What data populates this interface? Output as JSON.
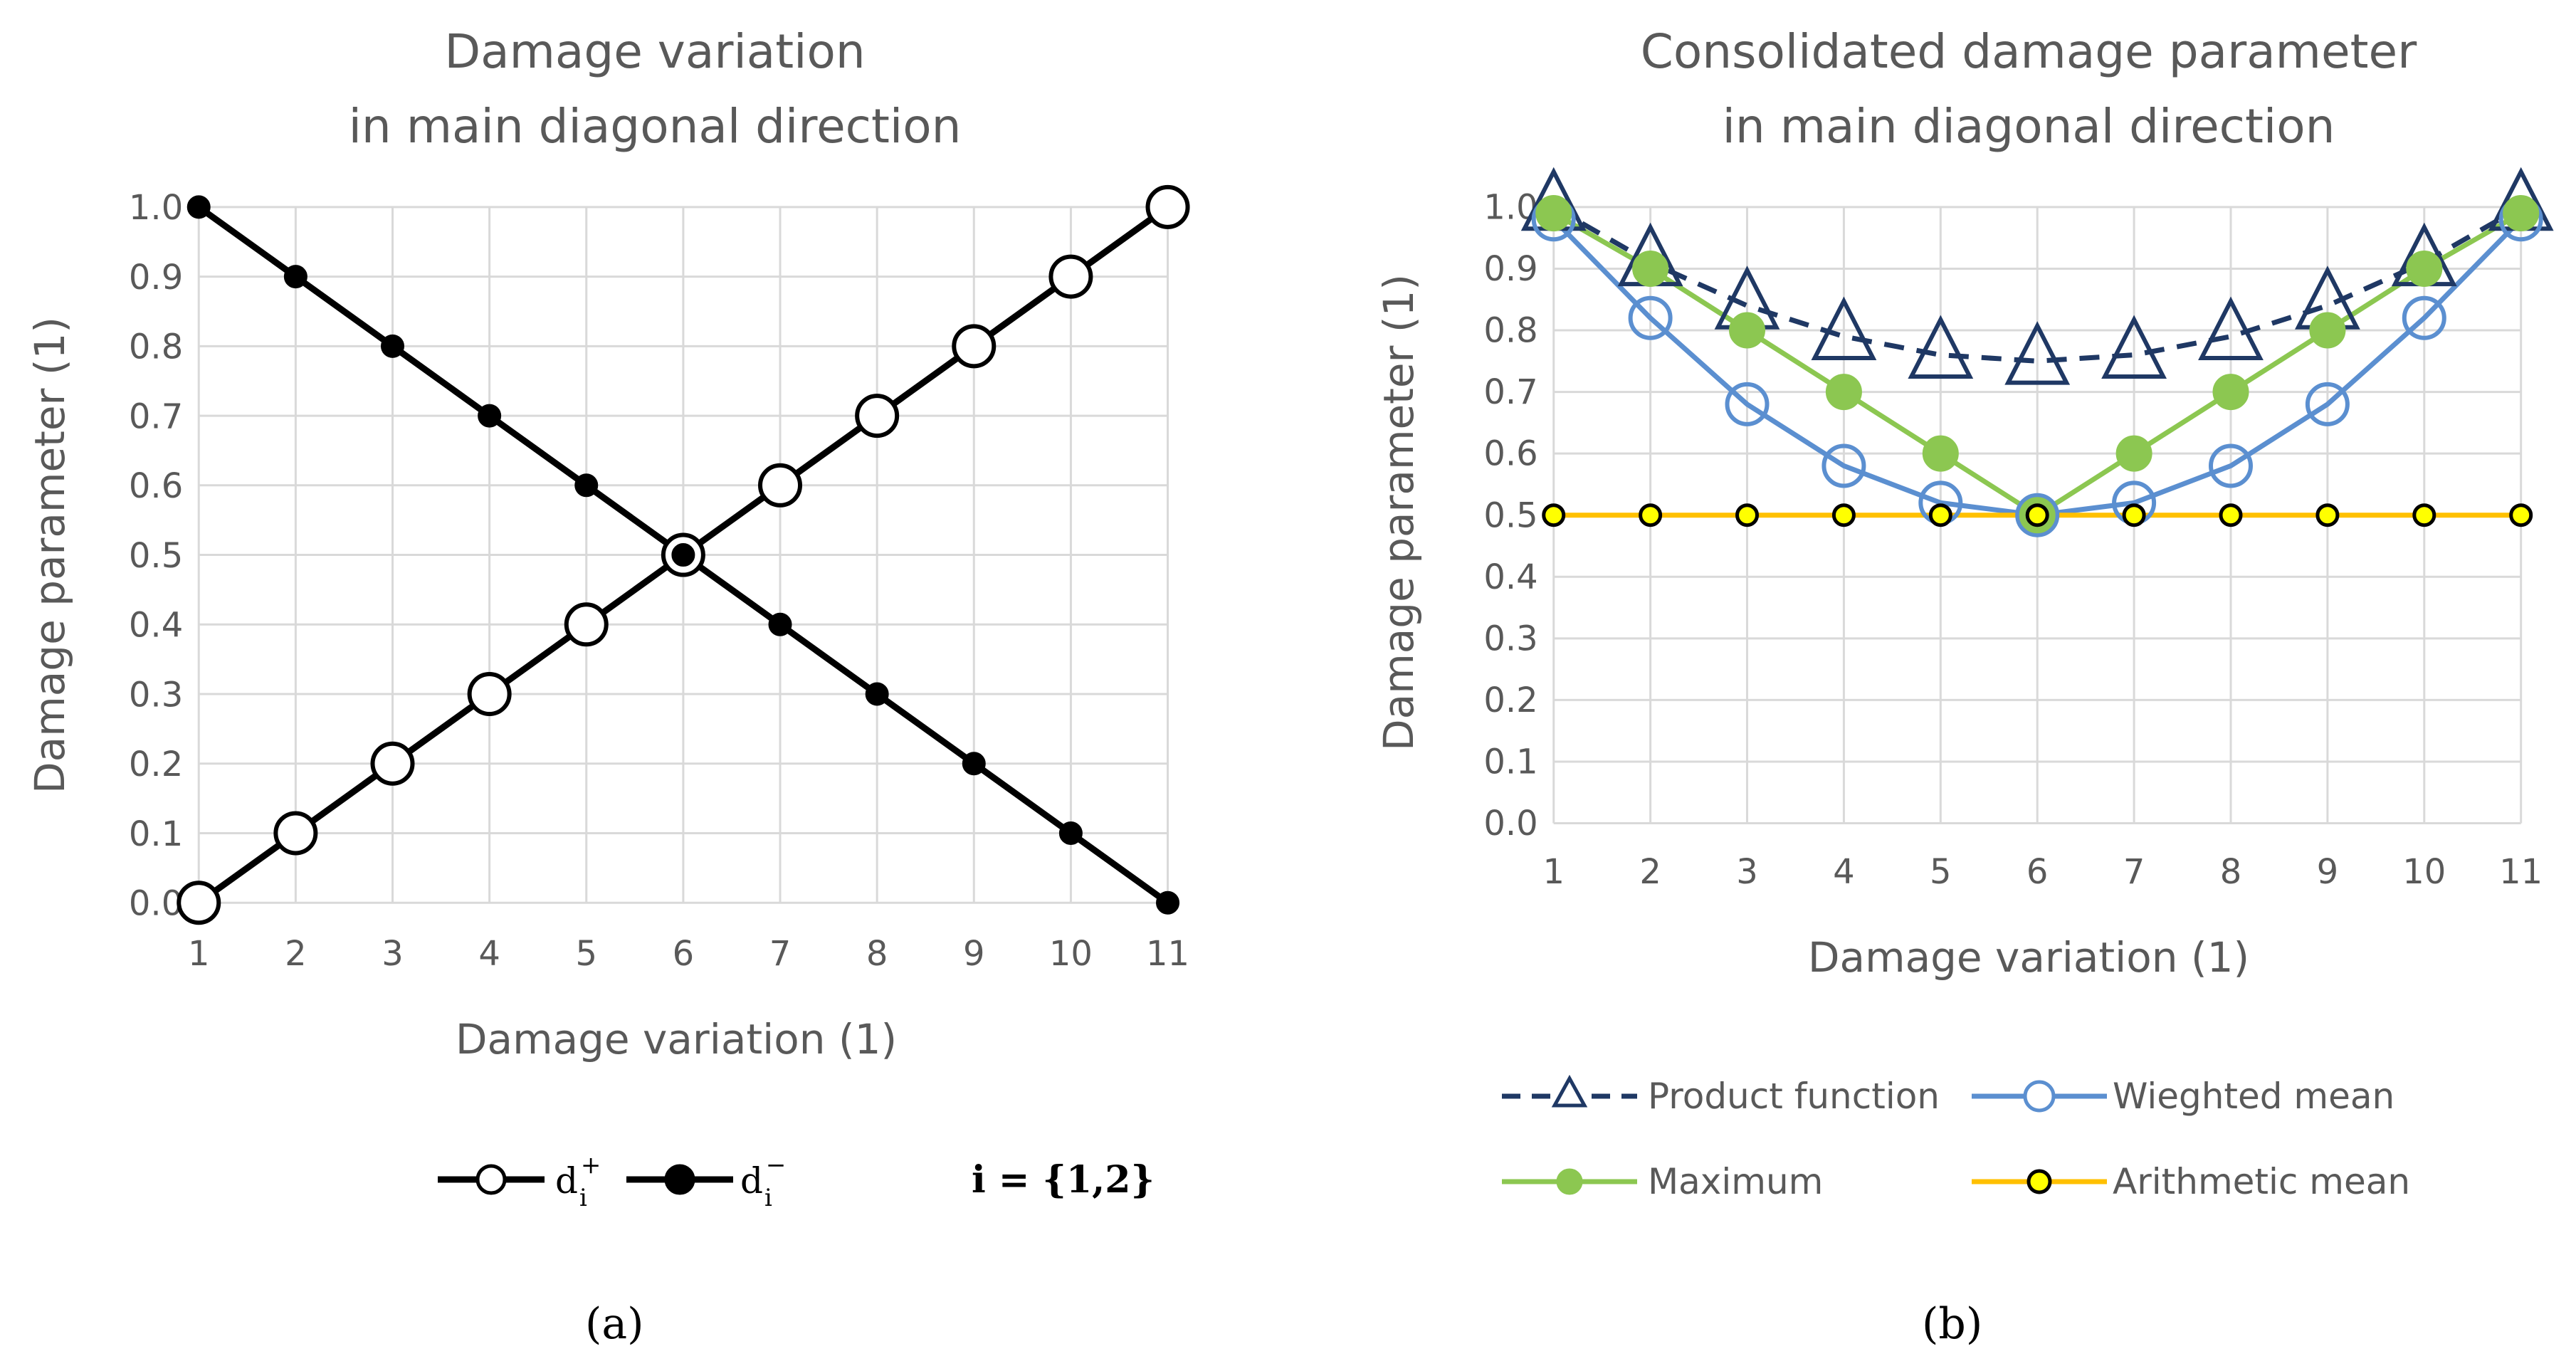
{
  "chart_data": [
    {
      "type": "line",
      "panel_label": "(a)",
      "title": [
        "Damage variation",
        "in main diagonal direction"
      ],
      "xlabel": "Damage variation (1)",
      "ylabel": "Damage parameter (1)",
      "x": [
        1,
        2,
        3,
        4,
        5,
        6,
        7,
        8,
        9,
        10,
        11
      ],
      "xticks": [
        "1",
        "2",
        "3",
        "4",
        "5",
        "6",
        "7",
        "8",
        "9",
        "10",
        "11"
      ],
      "yticks": [
        "0.0",
        "0.1",
        "0.2",
        "0.3",
        "0.4",
        "0.5",
        "0.6",
        "0.7",
        "0.8",
        "0.9",
        "1.0"
      ],
      "ylim": [
        0,
        1
      ],
      "grid": true,
      "legend_placement": "bottom",
      "legend_note": "i = {1,2}",
      "series": [
        {
          "name": "d_i^+",
          "base": "d",
          "sub": "i",
          "sup": "+",
          "marker": "open-circle",
          "color": "#000000",
          "values": [
            0.0,
            0.1,
            0.2,
            0.3,
            0.4,
            0.5,
            0.6,
            0.7,
            0.8,
            0.9,
            1.0
          ]
        },
        {
          "name": "d_i^-",
          "base": "d",
          "sub": "i",
          "sup": "−",
          "marker": "filled-circle",
          "color": "#000000",
          "values": [
            1.0,
            0.9,
            0.8,
            0.7,
            0.6,
            0.5,
            0.4,
            0.3,
            0.2,
            0.1,
            0.0
          ]
        }
      ]
    },
    {
      "type": "line",
      "panel_label": "(b)",
      "title": [
        "Consolidated damage parameter",
        "in main diagonal direction"
      ],
      "xlabel": "Damage variation (1)",
      "ylabel": "Damage parameter (1)",
      "x": [
        1,
        2,
        3,
        4,
        5,
        6,
        7,
        8,
        9,
        10,
        11
      ],
      "xticks": [
        "1",
        "2",
        "3",
        "4",
        "5",
        "6",
        "7",
        "8",
        "9",
        "10",
        "11"
      ],
      "yticks": [
        "0.0",
        "0.1",
        "0.2",
        "0.3",
        "0.4",
        "0.5",
        "0.6",
        "0.7",
        "0.8",
        "0.9",
        "1.0"
      ],
      "ylim": [
        0,
        1
      ],
      "grid": true,
      "legend_placement": "bottom",
      "series": [
        {
          "name": "Product function",
          "marker": "open-triangle",
          "line": "dashed",
          "color": "#1f3864",
          "values": [
            1.0,
            0.91,
            0.84,
            0.79,
            0.76,
            0.75,
            0.76,
            0.79,
            0.84,
            0.91,
            1.0
          ]
        },
        {
          "name": "Wieghted mean",
          "marker": "open-circle",
          "line": "solid",
          "color": "#5b8fd0",
          "values": [
            0.98,
            0.82,
            0.68,
            0.58,
            0.52,
            0.5,
            0.52,
            0.58,
            0.68,
            0.82,
            0.98
          ]
        },
        {
          "name": "Maximum",
          "marker": "filled-circle",
          "line": "solid",
          "color": "#8cc751",
          "values": [
            0.99,
            0.9,
            0.8,
            0.7,
            0.6,
            0.5,
            0.6,
            0.7,
            0.8,
            0.9,
            0.99
          ]
        },
        {
          "name": "Arithmetic mean",
          "marker": "small-yellow-circle",
          "line": "solid",
          "color": "#ffc000",
          "values": [
            0.5,
            0.5,
            0.5,
            0.5,
            0.5,
            0.5,
            0.5,
            0.5,
            0.5,
            0.5,
            0.5
          ]
        }
      ]
    }
  ]
}
